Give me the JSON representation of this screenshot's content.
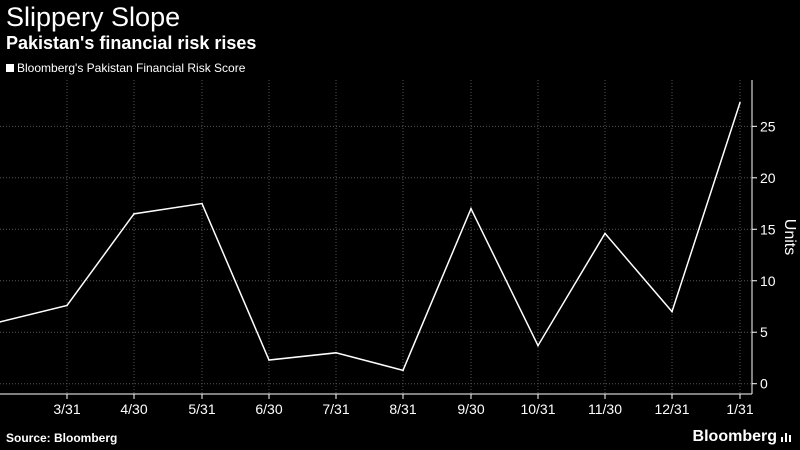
{
  "header": {
    "title": "Slippery Slope",
    "subtitle": "Pakistan's financial risk rises"
  },
  "footer": {
    "source": "Source: Bloomberg",
    "brand": "Bloomberg",
    "brand_icon": "bar-chart-icon"
  },
  "colors": {
    "background": "#000000",
    "line": "#ffffff",
    "grid": "#555555"
  },
  "chart_data": {
    "type": "line",
    "title": "Slippery Slope",
    "subtitle": "Pakistan's financial risk rises",
    "ylabel": "Units",
    "xlabel": "",
    "y_axis_side": "right",
    "ylim": [
      -1,
      29.5
    ],
    "yticks": [
      0,
      5,
      10,
      15,
      20,
      25
    ],
    "categories": [
      "3/31",
      "4/30",
      "5/31",
      "6/30",
      "7/31",
      "8/31",
      "9/30",
      "10/31",
      "11/30",
      "12/31",
      "1/31"
    ],
    "grid": true,
    "legend_position": "top-left",
    "series": [
      {
        "name": "Bloomberg's Pakistan Financial Risk Score",
        "x": [
          "3/6",
          "3/31",
          "4/30",
          "5/31",
          "6/30",
          "7/31",
          "8/31",
          "9/30",
          "10/31",
          "11/30",
          "12/31",
          "1/31"
        ],
        "values": [
          6.0,
          7.6,
          16.5,
          17.5,
          2.3,
          3.0,
          1.3,
          17.0,
          3.7,
          14.6,
          7.0,
          27.3
        ]
      }
    ]
  }
}
